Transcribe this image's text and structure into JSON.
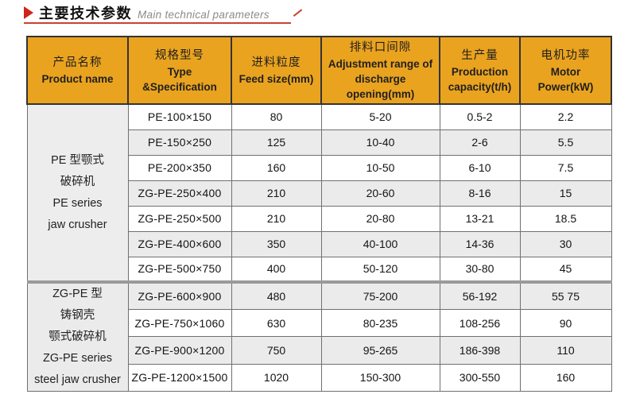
{
  "title": {
    "zh": "主要技术参数",
    "en": "Main technical parameters",
    "arrow_icon": "right-triangle"
  },
  "table": {
    "columns": [
      {
        "key": "product-name",
        "zh": "产品名称",
        "en": "Product name"
      },
      {
        "key": "type-specification",
        "zh": "规格型号",
        "en": "Type &Specification"
      },
      {
        "key": "feed-size",
        "zh": "进料粒度",
        "en": "Feed size(mm)"
      },
      {
        "key": "discharge-opening",
        "zh": "排料口间隙",
        "en": "Adjustment range of discharge opening(mm)"
      },
      {
        "key": "production-capacity",
        "zh": "生产量",
        "en": "Production capacity(t/h)"
      },
      {
        "key": "motor-power",
        "zh": "电机功率",
        "en": "Motor Power(kW)"
      }
    ],
    "groups": [
      {
        "product_lines": [
          "PE 型颚式",
          "破碎机",
          "PE series",
          "jaw crusher"
        ],
        "rows": [
          [
            "PE-100×150",
            "80",
            "5-20",
            "0.5-2",
            "2.2"
          ],
          [
            "PE-150×250",
            "125",
            "10-40",
            "2-6",
            "5.5"
          ],
          [
            "PE-200×350",
            "160",
            "10-50",
            "6-10",
            "7.5"
          ],
          [
            "ZG-PE-250×400",
            "210",
            "20-60",
            "8-16",
            "15"
          ],
          [
            "ZG-PE-250×500",
            "210",
            "20-80",
            "13-21",
            "18.5"
          ],
          [
            "ZG-PE-400×600",
            "350",
            "40-100",
            "14-36",
            "30"
          ],
          [
            "ZG-PE-500×750",
            "400",
            "50-120",
            "30-80",
            "45"
          ]
        ]
      },
      {
        "product_lines": [
          "ZG-PE 型",
          "铸钢壳",
          "颚式破碎机",
          "ZG-PE series",
          "steel jaw crusher"
        ],
        "rows": [
          [
            "ZG-PE-600×900",
            "480",
            "75-200",
            "56-192",
            "55 75"
          ],
          [
            "ZG-PE-750×1060",
            "630",
            "80-235",
            "108-256",
            "90"
          ],
          [
            "ZG-PE-900×1200",
            "750",
            "95-265",
            "186-398",
            "110"
          ],
          [
            "ZG-PE-1200×1500",
            "1020",
            "150-300",
            "300-550",
            "160"
          ]
        ]
      }
    ]
  },
  "colors": {
    "header_bg": "#EAA31F",
    "title_accent": "#D2231A",
    "underline": "#C8432E",
    "row_stripe": "#EBEBEB",
    "product_col_bg": "#EDEDED",
    "border_dark": "#333333",
    "border_light": "#707070",
    "group_divider": "#9A9A9A",
    "title_en_gray": "#8B8B8B"
  }
}
